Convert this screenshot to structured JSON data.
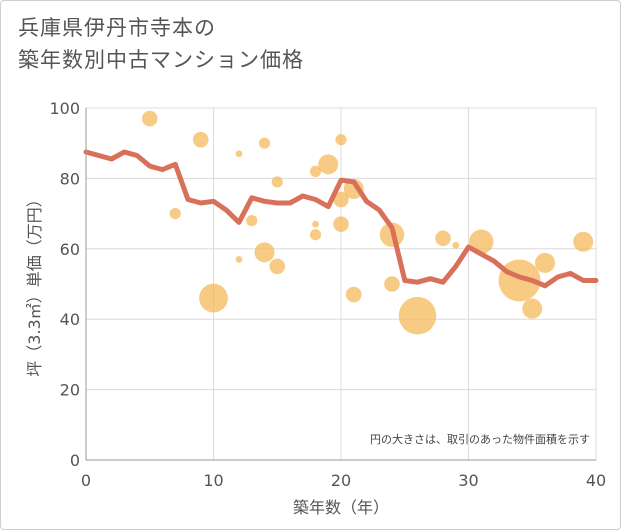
{
  "title_lines": [
    "兵庫県伊丹市寺本の",
    "築年数別中古マンション価格"
  ],
  "chart_data": {
    "type": "scatter",
    "xlabel": "築年数（年）",
    "ylabel": "坪（3.3㎡）単価（万円）",
    "xlim": [
      0,
      40
    ],
    "ylim": [
      0,
      100
    ],
    "xticks": [
      "0",
      "10",
      "20",
      "30",
      "40"
    ],
    "yticks": [
      "0",
      "20",
      "40",
      "60",
      "80",
      "100"
    ],
    "grid": true,
    "annotation": "円の大きさは、取引のあった物件面積を示す",
    "bubble_color": "#f5b754",
    "line_color": "#d9705a",
    "bubbles": [
      {
        "x": 5,
        "y": 97,
        "size": 3
      },
      {
        "x": 9,
        "y": 91,
        "size": 3
      },
      {
        "x": 7,
        "y": 70,
        "size": 2
      },
      {
        "x": 10,
        "y": 46,
        "size": 6
      },
      {
        "x": 12,
        "y": 87,
        "size": 1
      },
      {
        "x": 12,
        "y": 57,
        "size": 1
      },
      {
        "x": 13,
        "y": 68,
        "size": 2
      },
      {
        "x": 14,
        "y": 90,
        "size": 2
      },
      {
        "x": 14,
        "y": 59,
        "size": 4
      },
      {
        "x": 15,
        "y": 79,
        "size": 2
      },
      {
        "x": 15,
        "y": 55,
        "size": 3
      },
      {
        "x": 18,
        "y": 82,
        "size": 2
      },
      {
        "x": 18,
        "y": 67,
        "size": 1
      },
      {
        "x": 18,
        "y": 64,
        "size": 2
      },
      {
        "x": 19,
        "y": 84,
        "size": 4
      },
      {
        "x": 20,
        "y": 91,
        "size": 2
      },
      {
        "x": 20,
        "y": 74,
        "size": 3
      },
      {
        "x": 20,
        "y": 67,
        "size": 3
      },
      {
        "x": 21,
        "y": 77,
        "size": 4
      },
      {
        "x": 21,
        "y": 47,
        "size": 3
      },
      {
        "x": 24,
        "y": 64,
        "size": 5
      },
      {
        "x": 24,
        "y": 50,
        "size": 3
      },
      {
        "x": 26,
        "y": 41,
        "size": 8
      },
      {
        "x": 28,
        "y": 63,
        "size": 3
      },
      {
        "x": 29,
        "y": 61,
        "size": 1
      },
      {
        "x": 31,
        "y": 62,
        "size": 5
      },
      {
        "x": 34,
        "y": 51,
        "size": 9
      },
      {
        "x": 35,
        "y": 43,
        "size": 4
      },
      {
        "x": 36,
        "y": 56,
        "size": 4
      },
      {
        "x": 39,
        "y": 62,
        "size": 4
      }
    ],
    "trend": {
      "x": [
        0,
        1,
        2,
        3,
        4,
        5,
        6,
        7,
        8,
        9,
        10,
        11,
        12,
        13,
        14,
        15,
        16,
        17,
        18,
        19,
        20,
        21,
        22,
        23,
        24,
        25,
        26,
        27,
        28,
        29,
        30,
        31,
        32,
        33,
        34,
        35,
        36,
        37,
        38,
        39,
        40
      ],
      "y": [
        87.5,
        86.5,
        85.5,
        87.5,
        86.5,
        83.5,
        82.5,
        84,
        74,
        73,
        73.5,
        71,
        67.5,
        74.5,
        73.5,
        73,
        73,
        75,
        74,
        72,
        79.5,
        79,
        73.5,
        71,
        66,
        51,
        50.5,
        51.5,
        50.5,
        55,
        60.5,
        58.5,
        56.5,
        53.5,
        52,
        51,
        49.5,
        52,
        53,
        51,
        51
      ]
    }
  }
}
